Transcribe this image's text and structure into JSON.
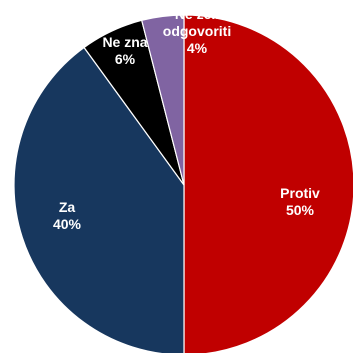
{
  "chart_data": {
    "type": "pie",
    "title": "",
    "start_angle_deg": 0,
    "direction": "clockwise",
    "slices": [
      {
        "label": "Protiv",
        "value": 50,
        "value_label": "50%",
        "color": "#c00000"
      },
      {
        "label": "Za",
        "value": 40,
        "value_label": "40%",
        "color": "#17375e"
      },
      {
        "label": "Ne zna",
        "value": 6,
        "value_label": "6%",
        "color": "#000000"
      },
      {
        "label": "Ne želi odgovoriti",
        "value": 4,
        "value_label": "4%",
        "color": "#8064a2"
      }
    ]
  }
}
